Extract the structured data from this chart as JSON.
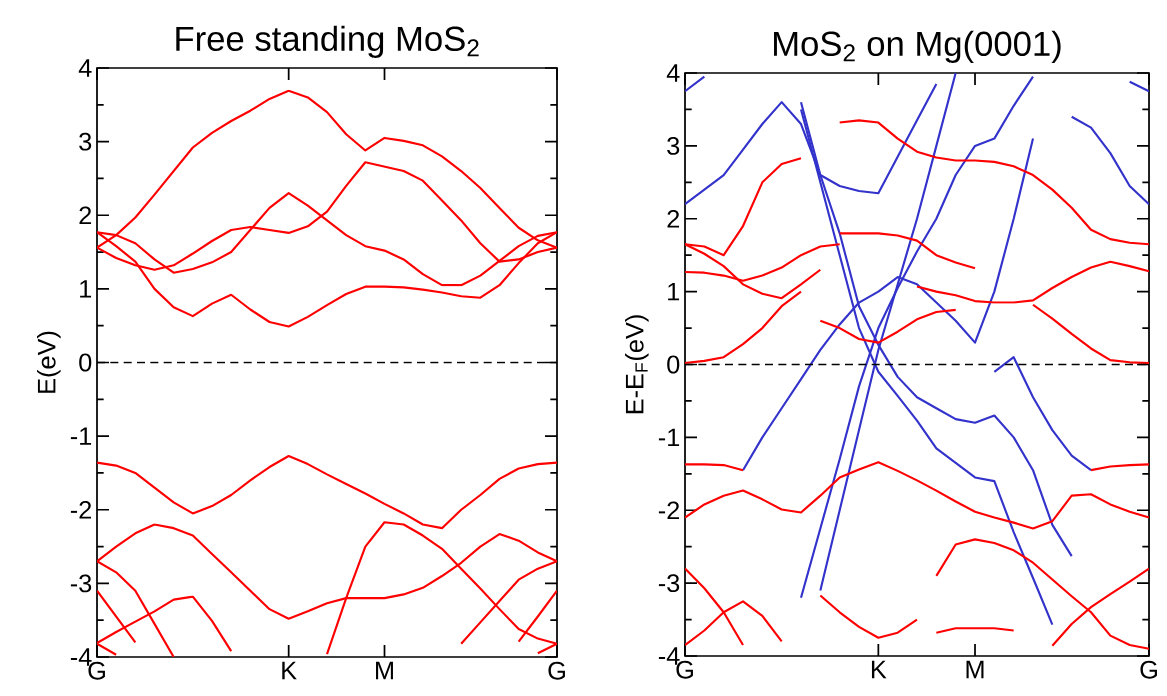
{
  "chart_data": [
    {
      "type": "line",
      "title": "Free standing MoS$_{2}$",
      "ylabel": "E(eV)",
      "ylim": [
        -4,
        4
      ],
      "categories": [
        "G",
        null,
        null,
        null,
        null,
        null,
        null,
        null,
        null,
        null,
        "K",
        null,
        null,
        null,
        null,
        "M",
        null,
        null,
        null,
        null,
        null,
        null,
        null,
        null,
        "G"
      ],
      "yticks": [
        -4,
        -3,
        -2,
        -1,
        0,
        1,
        2,
        3,
        4
      ],
      "ref_lines": [
        {
          "axis": "y",
          "value": 0,
          "color": "#000000",
          "line_style": "dashed"
        }
      ],
      "series": [
        {
          "color": "#ff0000",
          "values": [
            1.56,
            1.73,
            1.97,
            2.28,
            2.6,
            2.92,
            3.12,
            3.28,
            3.42,
            3.58,
            3.69,
            3.6,
            3.4,
            3.1,
            2.88,
            3.05,
            3.01,
            2.95,
            2.8,
            2.6,
            2.37,
            2.1,
            1.83,
            1.66,
            1.56
          ]
        },
        {
          "color": "#ff0000",
          "values": [
            1.77,
            1.58,
            1.37,
            1.0,
            0.75,
            0.63,
            0.8,
            0.92,
            0.72,
            0.55,
            0.49,
            0.62,
            0.78,
            0.93,
            1.03,
            1.03,
            1.02,
            0.99,
            0.95,
            0.9,
            0.88,
            1.05,
            1.35,
            1.62,
            1.77
          ]
        },
        {
          "color": "#ff0000",
          "values": [
            1.77,
            1.73,
            1.62,
            1.4,
            1.22,
            1.27,
            1.36,
            1.5,
            1.8,
            2.1,
            2.3,
            2.13,
            1.93,
            1.73,
            1.58,
            1.52,
            1.4,
            1.2,
            1.05,
            1.05,
            1.18,
            1.38,
            1.58,
            1.72,
            1.77
          ]
        },
        {
          "color": "#ff0000",
          "values": [
            1.56,
            1.42,
            1.32,
            1.26,
            1.32,
            1.48,
            1.65,
            1.8,
            1.84,
            1.8,
            1.76,
            1.85,
            2.05,
            2.4,
            2.72,
            2.66,
            2.6,
            2.47,
            2.2,
            1.93,
            1.62,
            1.37,
            1.4,
            1.5,
            1.56
          ]
        },
        {
          "color": "#ff0000",
          "values": [
            -1.36,
            -1.4,
            -1.5,
            -1.7,
            -1.9,
            -2.05,
            -1.95,
            -1.8,
            -1.6,
            -1.42,
            -1.27,
            -1.38,
            -1.52,
            -1.65,
            -1.78,
            -1.92,
            -2.05,
            -2.2,
            -2.25,
            -2.0,
            -1.8,
            -1.58,
            -1.44,
            -1.38,
            -1.36
          ]
        },
        {
          "color": "#ff0000",
          "values": [
            -2.7,
            -2.5,
            -2.32,
            -2.2,
            -2.25,
            -2.35,
            -2.6,
            -2.85,
            -3.1,
            -3.35,
            -3.48,
            -3.38,
            -3.27,
            -3.2,
            -3.2,
            -3.2,
            -3.15,
            -3.06,
            -2.9,
            -2.72,
            -2.5,
            -2.33,
            -2.42,
            -2.58,
            -2.7
          ]
        },
        {
          "color": "#ff0000",
          "values": [
            null,
            null,
            null,
            null,
            null,
            null,
            null,
            null,
            null,
            null,
            null,
            null,
            -3.96,
            -3.2,
            -2.5,
            -2.17,
            -2.2,
            -2.35,
            -2.53,
            -2.8,
            -3.07,
            -3.35,
            -3.62,
            -3.75,
            -3.82
          ]
        },
        {
          "color": "#ff0000",
          "values": [
            -2.7,
            -2.85,
            -3.1,
            -3.55,
            -4.0,
            null,
            null,
            null,
            null,
            null,
            null,
            null,
            null,
            null,
            null,
            null,
            null,
            null,
            null,
            -3.82,
            -3.53,
            -3.24,
            -2.95,
            -2.8,
            -2.7
          ]
        },
        {
          "color": "#ff0000",
          "values": [
            -3.1,
            -3.45,
            -3.8,
            null,
            null,
            null,
            null,
            null,
            null,
            null,
            null,
            null,
            null,
            null,
            null,
            null,
            null,
            null,
            null,
            null,
            null,
            null,
            -3.79,
            -3.45,
            -3.1
          ]
        },
        {
          "color": "#ff0000",
          "values": [
            -3.81,
            -3.66,
            -3.52,
            -3.38,
            -3.22,
            -3.18,
            -3.51,
            -3.92,
            null,
            null,
            null,
            null,
            null,
            null,
            null,
            null,
            null,
            null,
            null,
            null,
            null,
            null,
            null,
            null,
            null
          ]
        },
        {
          "color": "#ff0000",
          "values": [
            -3.82,
            -3.97,
            null,
            null,
            null,
            null,
            null,
            null,
            null,
            null,
            null,
            null,
            null,
            null,
            null,
            null,
            null,
            null,
            null,
            null,
            null,
            null,
            null,
            -3.95,
            -3.82
          ]
        }
      ]
    },
    {
      "type": "line",
      "title": "MoS$_{2}$ on Mg(0001)",
      "ylabel": "E-E$_{F}$(eV)",
      "ylim": [
        -4,
        4
      ],
      "categories": [
        "G",
        null,
        null,
        null,
        null,
        null,
        null,
        null,
        null,
        null,
        "K",
        null,
        null,
        null,
        null,
        "M",
        null,
        null,
        null,
        null,
        null,
        null,
        null,
        null,
        "G"
      ],
      "yticks": [
        -4,
        -3,
        -2,
        -1,
        0,
        1,
        2,
        3,
        4
      ],
      "ref_lines": [
        {
          "axis": "y",
          "value": 0,
          "color": "#000000",
          "line_style": "dashed"
        }
      ],
      "series": [
        {
          "color": "#3333cc",
          "values": [
            3.75,
            3.95,
            null,
            null,
            null,
            null,
            null,
            null,
            null,
            null,
            null,
            null,
            null,
            null,
            null,
            null,
            null,
            null,
            null,
            null,
            null,
            null,
            null,
            null,
            null
          ]
        },
        {
          "color": "#3333cc",
          "values": [
            2.2,
            2.4,
            2.6,
            2.95,
            3.3,
            3.6,
            3.3,
            2.6,
            2.45,
            2.38,
            2.35,
            2.85,
            3.35,
            3.85,
            null,
            null,
            null,
            null,
            null,
            null,
            null,
            null,
            null,
            null,
            null
          ]
        },
        {
          "color": "#3333cc",
          "values": [
            null,
            null,
            null,
            null,
            null,
            null,
            3.5,
            2.5,
            1.5,
            0.5,
            -0.1,
            -0.43,
            -0.77,
            -1.15,
            -1.35,
            -1.55,
            -1.6,
            -2.3,
            -2.93,
            -3.57,
            null,
            null,
            null,
            null,
            null
          ]
        },
        {
          "color": "#3333cc",
          "values": [
            null,
            null,
            null,
            null,
            null,
            null,
            3.6,
            2.6,
            1.8,
            0.8,
            0.27,
            -0.17,
            -0.45,
            -0.6,
            -0.75,
            -0.8,
            -0.7,
            -1.0,
            -1.45,
            -2.2,
            -2.63,
            null,
            null,
            null,
            null
          ]
        },
        {
          "color": "#3333cc",
          "values": [
            null,
            null,
            null,
            -1.45,
            -1.0,
            -0.6,
            -0.2,
            0.2,
            0.55,
            0.85,
            1.0,
            1.2,
            1.1,
            0.85,
            0.6,
            0.3,
            1.0,
            2.0,
            3.1,
            null,
            null,
            null,
            null,
            null,
            null
          ]
        },
        {
          "color": "#3333cc",
          "values": [
            null,
            null,
            null,
            null,
            null,
            null,
            -3.2,
            -2.25,
            -1.3,
            -0.3,
            0.5,
            1.05,
            1.55,
            2.0,
            2.6,
            3.0,
            3.1,
            3.55,
            3.95,
            null,
            null,
            null,
            null,
            null,
            null
          ]
        },
        {
          "color": "#3333cc",
          "values": [
            null,
            null,
            null,
            null,
            null,
            null,
            null,
            -3.1,
            -2.0,
            -0.9,
            0.2,
            1.1,
            2.0,
            3.0,
            4.0,
            null,
            null,
            null,
            null,
            null,
            null,
            null,
            null,
            null,
            null
          ]
        },
        {
          "color": "#3333cc",
          "values": [
            null,
            null,
            null,
            null,
            null,
            null,
            null,
            null,
            null,
            null,
            null,
            null,
            null,
            null,
            null,
            null,
            -0.1,
            0.1,
            -0.45,
            -0.9,
            -1.25,
            -1.45,
            null,
            null,
            null
          ]
        },
        {
          "color": "#3333cc",
          "values": [
            null,
            null,
            null,
            null,
            null,
            null,
            null,
            null,
            null,
            null,
            null,
            null,
            null,
            null,
            null,
            null,
            null,
            null,
            null,
            null,
            3.4,
            3.25,
            2.9,
            2.45,
            2.2
          ]
        },
        {
          "color": "#3333cc",
          "values": [
            null,
            null,
            null,
            null,
            null,
            null,
            null,
            null,
            null,
            null,
            null,
            null,
            null,
            null,
            null,
            null,
            null,
            null,
            null,
            null,
            null,
            null,
            null,
            3.88,
            3.75
          ]
        },
        {
          "color": "#ff0000",
          "values": [
            1.65,
            1.62,
            1.5,
            1.9,
            2.5,
            2.75,
            2.83,
            null,
            null,
            null,
            null,
            null,
            null,
            null,
            null,
            null,
            null,
            null,
            null,
            null,
            null,
            null,
            null,
            null,
            null
          ]
        },
        {
          "color": "#ff0000",
          "values": [
            1.27,
            1.26,
            1.22,
            1.15,
            1.22,
            1.33,
            1.5,
            1.62,
            1.65,
            null,
            null,
            null,
            null,
            null,
            null,
            null,
            null,
            null,
            null,
            null,
            null,
            null,
            null,
            null,
            null
          ]
        },
        {
          "color": "#ff0000",
          "values": [
            1.65,
            1.52,
            1.35,
            1.1,
            0.97,
            0.91,
            1.1,
            1.3,
            null,
            null,
            null,
            null,
            null,
            null,
            null,
            null,
            null,
            null,
            null,
            null,
            null,
            null,
            null,
            null,
            null
          ]
        },
        {
          "color": "#ff0000",
          "values": [
            null,
            null,
            null,
            null,
            null,
            null,
            null,
            null,
            3.32,
            3.35,
            3.32,
            3.1,
            2.92,
            2.84,
            2.8,
            2.8,
            2.78,
            2.72,
            2.6,
            2.4,
            2.15,
            1.85,
            1.72,
            1.67,
            1.65
          ]
        },
        {
          "color": "#ff0000",
          "values": [
            null,
            null,
            null,
            null,
            null,
            null,
            null,
            null,
            null,
            null,
            null,
            null,
            1.07,
            1.0,
            0.95,
            0.87,
            0.85,
            0.85,
            0.88,
            1.05,
            1.2,
            1.33,
            1.41,
            1.35,
            1.28
          ]
        },
        {
          "color": "#ff0000",
          "values": [
            null,
            null,
            null,
            null,
            null,
            null,
            null,
            0.6,
            0.5,
            0.35,
            0.3,
            0.45,
            0.62,
            0.72,
            0.75,
            null,
            null,
            null,
            null,
            null,
            null,
            null,
            null,
            null,
            null
          ]
        },
        {
          "color": "#ff0000",
          "values": [
            0.02,
            0.05,
            0.1,
            0.28,
            0.5,
            0.8,
            1.0,
            null,
            null,
            null,
            null,
            null,
            null,
            null,
            null,
            null,
            null,
            null,
            0.82,
            0.63,
            0.42,
            0.22,
            0.06,
            0.03,
            0.02
          ]
        },
        {
          "color": "#ff0000",
          "values": [
            null,
            null,
            null,
            null,
            null,
            null,
            null,
            null,
            1.8,
            1.8,
            1.8,
            1.77,
            1.7,
            1.5,
            1.4,
            1.32,
            null,
            null,
            null,
            null,
            null,
            null,
            null,
            null,
            null
          ]
        },
        {
          "color": "#ff0000",
          "values": [
            -1.37,
            -1.37,
            -1.38,
            -1.45,
            null,
            null,
            null,
            null,
            null,
            null,
            null,
            null,
            null,
            null,
            null,
            null,
            null,
            null,
            null,
            null,
            null,
            -1.45,
            -1.4,
            -1.38,
            -1.37
          ]
        },
        {
          "color": "#ff0000",
          "values": [
            -2.1,
            -1.92,
            -1.8,
            -1.73,
            -1.85,
            -1.99,
            -2.03,
            -1.8,
            -1.55,
            -1.44,
            -1.34,
            -1.46,
            -1.59,
            -1.73,
            -1.88,
            -2.02,
            -2.1,
            -2.17,
            -2.25,
            -2.15,
            -1.8,
            -1.78,
            -1.92,
            -2.02,
            -2.1
          ]
        },
        {
          "color": "#ff0000",
          "values": [
            null,
            null,
            null,
            null,
            null,
            null,
            null,
            null,
            null,
            null,
            null,
            null,
            null,
            -2.9,
            -2.47,
            -2.4,
            -2.45,
            -2.55,
            -2.72,
            -2.95,
            -3.18,
            -3.4,
            -3.72,
            -3.85,
            -3.9
          ]
        },
        {
          "color": "#ff0000",
          "values": [
            -2.8,
            -3.07,
            -3.4,
            -3.85,
            null,
            null,
            null,
            null,
            null,
            null,
            null,
            null,
            null,
            null,
            null,
            null,
            null,
            null,
            null,
            -3.86,
            -3.56,
            -3.33,
            -3.15,
            -2.98,
            -2.8
          ]
        },
        {
          "color": "#ff0000",
          "values": [
            -3.85,
            -3.65,
            -3.4,
            -3.25,
            -3.45,
            -3.8,
            null,
            null,
            null,
            null,
            null,
            null,
            null,
            null,
            null,
            null,
            null,
            null,
            null,
            null,
            null,
            null,
            null,
            null,
            null
          ]
        },
        {
          "color": "#ff0000",
          "values": [
            null,
            null,
            null,
            null,
            null,
            null,
            null,
            -3.17,
            -3.4,
            -3.6,
            -3.75,
            -3.68,
            -3.5,
            null,
            null,
            null,
            null,
            null,
            null,
            null,
            null,
            null,
            null,
            null,
            null
          ]
        },
        {
          "color": "#ff0000",
          "values": [
            null,
            null,
            null,
            null,
            null,
            null,
            null,
            null,
            null,
            null,
            null,
            null,
            null,
            -3.68,
            -3.62,
            -3.62,
            -3.62,
            -3.65,
            null,
            null,
            null,
            null,
            null,
            null,
            null
          ]
        }
      ]
    }
  ]
}
